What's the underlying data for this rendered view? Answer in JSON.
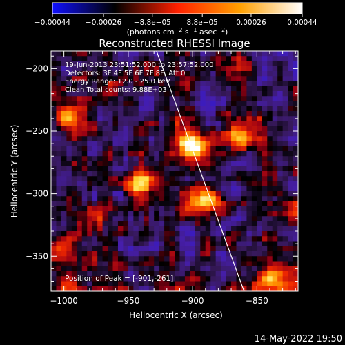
{
  "chart_data": {
    "type": "heatmap",
    "title": "Reconstructed RHESSI Image",
    "xlabel": "Heliocentric X (arcsec)",
    "ylabel": "Heliocentric Y (arcsec)",
    "xlim": [
      -1010,
      -818
    ],
    "ylim": [
      -378,
      -186
    ],
    "x_ticks": [
      -1000,
      -950,
      -900,
      -850
    ],
    "y_ticks": [
      -350,
      -300,
      -250,
      -200
    ],
    "x_tick_labels": [
      "−1000",
      "−950",
      "−900",
      "−850"
    ],
    "y_tick_labels": [
      "−350",
      "−300",
      "−250",
      "−200"
    ],
    "colorbar": {
      "range": [
        -0.00044,
        0.00044
      ],
      "ticks": [
        -0.00044,
        -0.00026,
        -8.8e-05,
        8.8e-05,
        0.00026,
        0.00044
      ],
      "tick_labels": [
        "−0.00044",
        "−0.00026",
        "−8.8e−05",
        "8.8e−05",
        "0.00026",
        "0.00044"
      ],
      "units_prefix": "(photons cm",
      "units_exp1": "−2",
      "units_mid": " s",
      "units_exp2": "−1",
      "units_mid2": " asec",
      "units_exp3": "−2",
      "units_suffix": ")",
      "colors": [
        "#1010ff",
        "#000000",
        "#ff2000",
        "#ffa000",
        "#ffffff"
      ]
    },
    "annotations": [
      "19-Jun-2013 23:51:52.000 to 23:57:52.000",
      "Detectors: 3F 4F 5F 6F 7F 8F, Att 0",
      "Energy Range: 12.0 - 25.0 keV",
      "Clean      Total counts: 9.88E+03"
    ],
    "peak_label": "Position of Peak = [-901,-261]",
    "peak": [
      -901,
      -261
    ],
    "limb_line": [
      [
        -928,
        -186
      ],
      [
        -860,
        -378
      ]
    ],
    "sources": [
      {
        "x": -901,
        "y": -261,
        "peak": 0.00044
      },
      {
        "x": -890,
        "y": -305,
        "peak": 0.0004
      },
      {
        "x": -939,
        "y": -292,
        "peak": 0.00036
      },
      {
        "x": -995,
        "y": -240,
        "peak": 0.00034
      },
      {
        "x": -862,
        "y": -255,
        "peak": 0.00028
      },
      {
        "x": -833,
        "y": -370,
        "peak": 0.00032
      },
      {
        "x": -1000,
        "y": -348,
        "peak": 0.0002
      }
    ]
  },
  "footer": {
    "date": "14-May-2022 19:50"
  }
}
